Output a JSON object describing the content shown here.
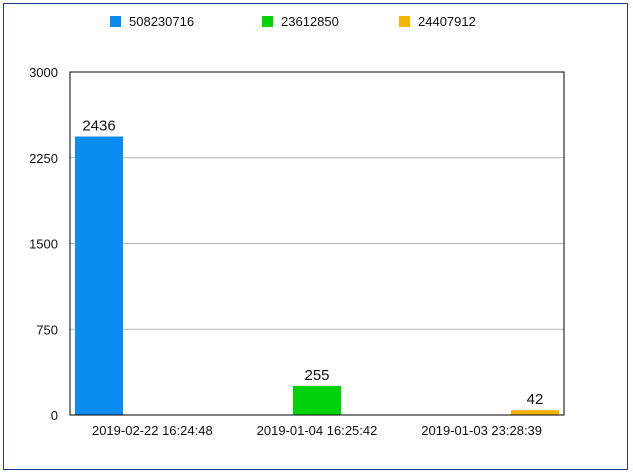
{
  "chart_data": {
    "type": "bar",
    "categories": [
      "2019-02-22 16:24:48",
      "2019-01-04 16:25:42",
      "2019-01-03 23:28:39"
    ],
    "series": [
      {
        "name": "508230716",
        "color": "#0a8cf0",
        "values": [
          2436,
          null,
          null
        ]
      },
      {
        "name": "23612850",
        "color": "#00d20a",
        "values": [
          null,
          255,
          null
        ]
      },
      {
        "name": "24407912",
        "color": "#f5b400",
        "values": [
          null,
          null,
          42
        ]
      }
    ],
    "title": "",
    "xlabel": "",
    "ylabel": "",
    "ylim": [
      0,
      3000
    ],
    "yticks": [
      0,
      750,
      1500,
      2250,
      3000
    ],
    "data_labels": [
      "2436",
      "255",
      "42"
    ],
    "grid": true,
    "legend_position": "top"
  }
}
